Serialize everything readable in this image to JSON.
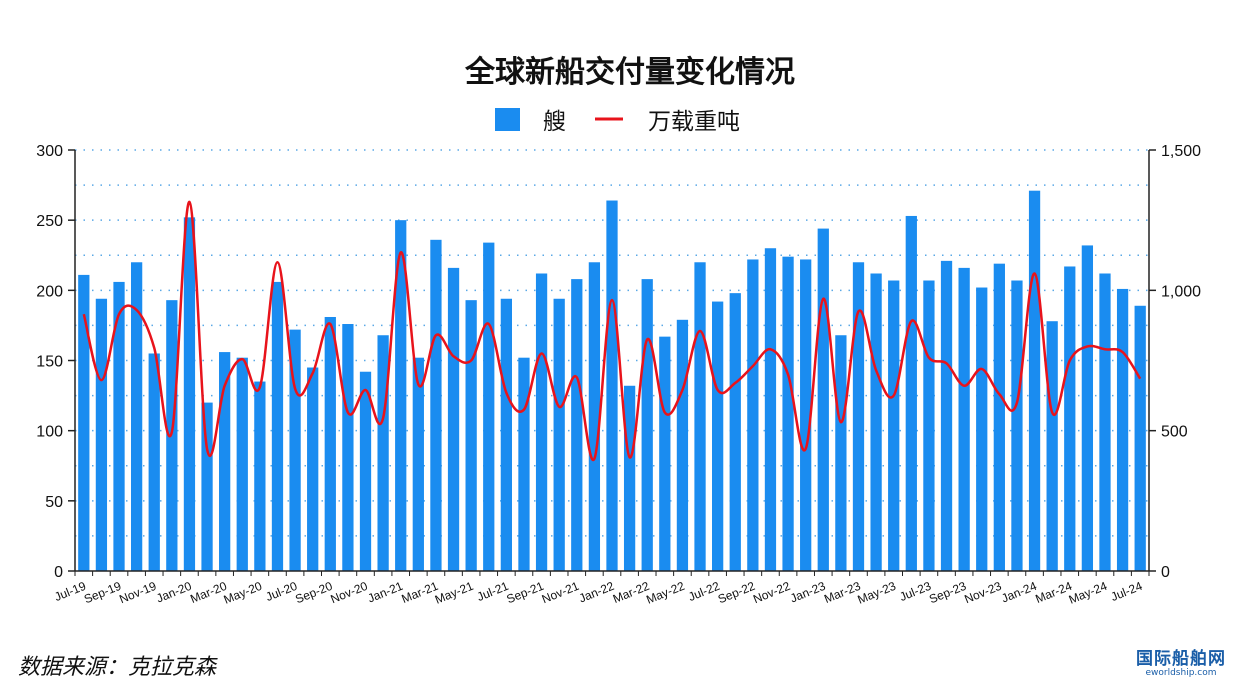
{
  "chart_data": {
    "type": "bar",
    "title": "全球新船交付量变化情况",
    "legend": [
      "艘",
      "万载重吨"
    ],
    "legend_position": "top-center",
    "grid": "horizontal-dotted",
    "categories": [
      "Jul-19",
      "Aug-19",
      "Sep-19",
      "Oct-19",
      "Nov-19",
      "Dec-19",
      "Jan-20",
      "Feb-20",
      "Mar-20",
      "Apr-20",
      "May-20",
      "Jun-20",
      "Jul-20",
      "Aug-20",
      "Sep-20",
      "Oct-20",
      "Nov-20",
      "Dec-20",
      "Jan-21",
      "Feb-21",
      "Mar-21",
      "Apr-21",
      "May-21",
      "Jun-21",
      "Jul-21",
      "Aug-21",
      "Sep-21",
      "Oct-21",
      "Nov-21",
      "Dec-21",
      "Jan-22",
      "Feb-22",
      "Mar-22",
      "Apr-22",
      "May-22",
      "Jun-22",
      "Jul-22",
      "Aug-22",
      "Sep-22",
      "Oct-22",
      "Nov-22",
      "Dec-22",
      "Jan-23",
      "Feb-23",
      "Mar-23",
      "Apr-23",
      "May-23",
      "Jun-23",
      "Jul-23",
      "Aug-23",
      "Sep-23",
      "Oct-23",
      "Nov-23",
      "Dec-23",
      "Jan-24",
      "Feb-24",
      "Mar-24",
      "Apr-24",
      "May-24",
      "Jun-24",
      "Jul-24"
    ],
    "x_tick_labels": [
      "Jul-19",
      "Sep-19",
      "Nov-19",
      "Jan-20",
      "Mar-20",
      "May-20",
      "Jul-20",
      "Sep-20",
      "Nov-20",
      "Jan-21",
      "Mar-21",
      "May-21",
      "Jul-21",
      "Sep-21",
      "Nov-21",
      "Jan-22",
      "Mar-22",
      "May-22",
      "Jul-22",
      "Sep-22",
      "Nov-22",
      "Jan-23",
      "Mar-23",
      "May-23",
      "Jul-23",
      "Sep-23",
      "Nov-23",
      "Jan-24",
      "Mar-24",
      "May-24",
      "Jul-24"
    ],
    "series": [
      {
        "name": "艘",
        "type": "bar",
        "axis": "left",
        "color": "#1a8cf0",
        "values": [
          211,
          194,
          206,
          220,
          155,
          193,
          252,
          120,
          156,
          152,
          135,
          206,
          172,
          145,
          181,
          176,
          142,
          168,
          250,
          152,
          236,
          216,
          193,
          234,
          194,
          152,
          212,
          194,
          208,
          220,
          264,
          132,
          208,
          167,
          179,
          220,
          192,
          198,
          222,
          230,
          224,
          222,
          244,
          168,
          220,
          212,
          207,
          253,
          207,
          221,
          216,
          202,
          219,
          207,
          271,
          178,
          217,
          232,
          212,
          201,
          189
        ]
      },
      {
        "name": "万载重吨",
        "type": "line",
        "axis": "right",
        "color": "#e8131b",
        "values": [
          915,
          680,
          915,
          930,
          795,
          495,
          1315,
          435,
          660,
          755,
          655,
          1100,
          650,
          705,
          880,
          565,
          645,
          545,
          1135,
          665,
          840,
          765,
          750,
          880,
          635,
          575,
          775,
          585,
          690,
          400,
          965,
          405,
          825,
          565,
          645,
          855,
          645,
          670,
          730,
          790,
          700,
          435,
          970,
          530,
          925,
          715,
          625,
          890,
          760,
          740,
          660,
          720,
          630,
          600,
          1060,
          565,
          750,
          800,
          790,
          780,
          685
        ]
      }
    ],
    "y_left": {
      "min": 0,
      "max": 300,
      "ticks": [
        0,
        50,
        100,
        150,
        200,
        250,
        300
      ]
    },
    "y_right": {
      "min": 0,
      "max": 1500,
      "ticks": [
        "0",
        "500",
        "1,000",
        "1,500"
      ]
    }
  },
  "footer": {
    "source": "数据来源：克拉克森",
    "logo_main": "国际船舶网",
    "logo_sub": "eworldship.com"
  }
}
